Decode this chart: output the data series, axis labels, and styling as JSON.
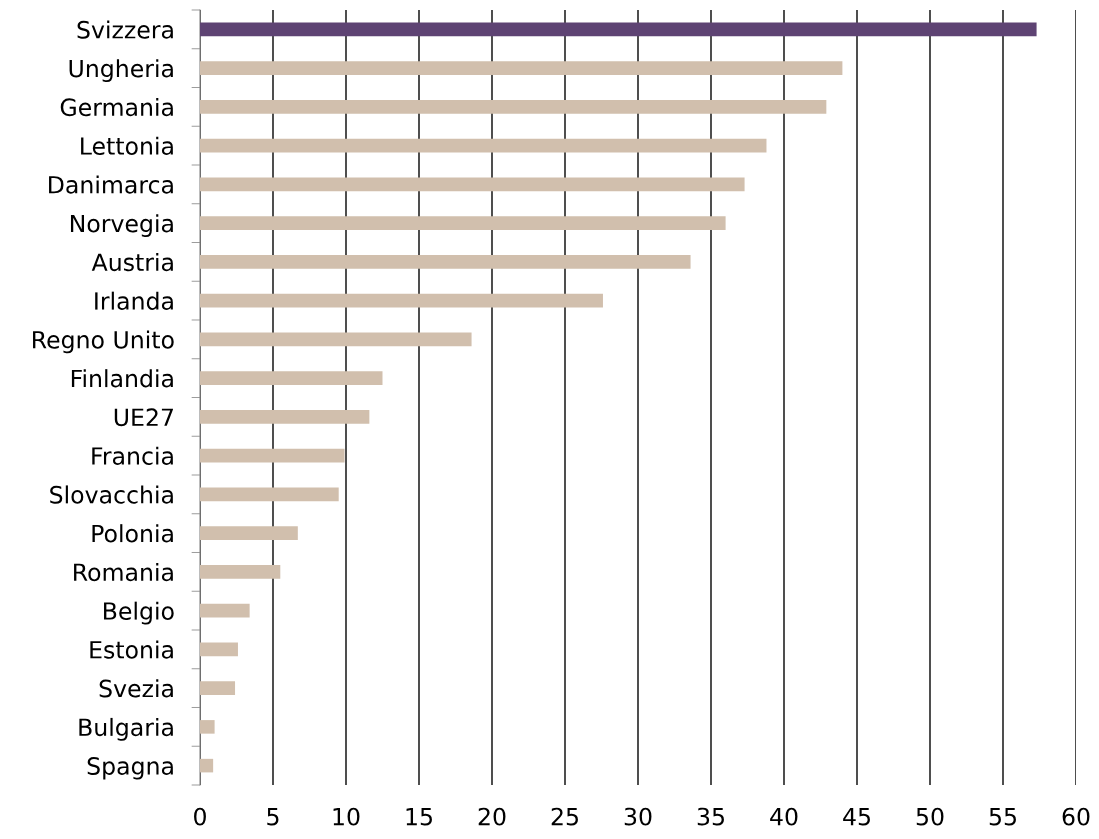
{
  "chart_data": {
    "type": "bar",
    "orientation": "horizontal",
    "categories": [
      "Svizzera",
      "Ungheria",
      "Germania",
      "Lettonia",
      "Danimarca",
      "Norvegia",
      "Austria",
      "Irlanda",
      "Regno Unito",
      "Finlandia",
      "UE27",
      "Francia",
      "Slovacchia",
      "Polonia",
      "Romania",
      "Belgio",
      "Estonia",
      "Svezia",
      "Bulgaria",
      "Spagna"
    ],
    "values": [
      57.3,
      44.0,
      42.9,
      38.8,
      37.3,
      36.0,
      33.6,
      27.6,
      18.6,
      12.5,
      11.6,
      9.9,
      9.5,
      6.7,
      5.5,
      3.4,
      2.6,
      2.4,
      1.0,
      0.9
    ],
    "colors": [
      "#5e4373",
      "#d1bfad",
      "#d1bfad",
      "#d1bfad",
      "#d1bfad",
      "#d1bfad",
      "#d1bfad",
      "#d1bfad",
      "#d1bfad",
      "#d1bfad",
      "#d1bfad",
      "#d1bfad",
      "#d1bfad",
      "#d1bfad",
      "#d1bfad",
      "#d1bfad",
      "#d1bfad",
      "#d1bfad",
      "#d1bfad",
      "#d1bfad"
    ],
    "xlim": [
      0,
      60
    ],
    "xticks": [
      0,
      5,
      10,
      15,
      20,
      25,
      30,
      35,
      40,
      45,
      50,
      55,
      60
    ],
    "grid": "x",
    "legend": false
  }
}
